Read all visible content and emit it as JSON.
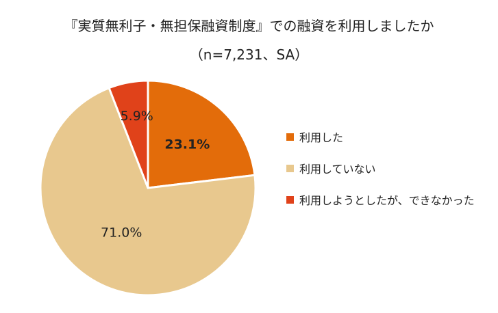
{
  "chart_data": {
    "type": "pie",
    "title": "『実質無利子・無担保融資制度』での融資を利用しましたか",
    "subtitle": "（n=7,231、SA）",
    "slices": [
      {
        "label": "利用した",
        "value": 23.1,
        "display": "23.1%",
        "color": "#E36C0A",
        "label_bold": true
      },
      {
        "label": "利用していない",
        "value": 71.0,
        "display": "71.0%",
        "color": "#E8C88E",
        "label_bold": false
      },
      {
        "label": "利用しようとしたが、できなかった",
        "value": 5.9,
        "display": "5.9%",
        "color": "#E0421A",
        "label_bold": false
      }
    ],
    "start_angle_deg": 0,
    "direction": "clockwise",
    "legend_position": "right"
  }
}
